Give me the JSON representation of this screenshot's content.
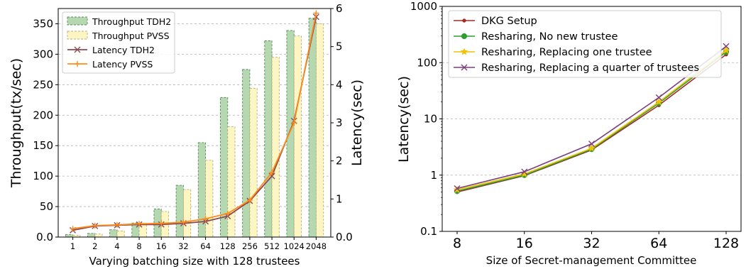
{
  "chart_data": [
    {
      "type": "bar",
      "combo": "bar+line",
      "xlabel": "Varying batching size with 128 trustees",
      "ylabel": "Throughput(tx/sec)",
      "y2label": "Latency(sec)",
      "categories": [
        "1",
        "2",
        "4",
        "8",
        "16",
        "32",
        "64",
        "128",
        "256",
        "512",
        "1024",
        "2048"
      ],
      "ylim": [
        0,
        375
      ],
      "y2lim": [
        0,
        6
      ],
      "yticks": [
        "0.0",
        "50",
        "100",
        "150",
        "200",
        "250",
        "300",
        "350"
      ],
      "y2ticks": [
        "0.0",
        "1",
        "2",
        "3",
        "4",
        "5",
        "6"
      ],
      "grid": true,
      "legend_position": "top-left",
      "series": [
        {
          "name": "Throughput TDH2",
          "kind": "bar",
          "axis": "left",
          "color": "#b5d8b0",
          "edge": "#5c8a5c",
          "values": [
            4,
            6,
            12,
            23,
            46,
            85,
            155,
            229,
            275,
            322,
            339,
            359
          ]
        },
        {
          "name": "Throughput PVSS",
          "kind": "bar",
          "axis": "left",
          "color": "#fdf6c3",
          "edge": "#b5b084",
          "values": [
            3,
            5,
            10,
            20,
            42,
            78,
            126,
            181,
            244,
            295,
            330,
            350
          ]
        },
        {
          "name": "Latency TDH2",
          "kind": "line",
          "axis": "right",
          "marker": "x",
          "color": "#8b4a52",
          "values": [
            0.18,
            0.29,
            0.31,
            0.33,
            0.33,
            0.36,
            0.41,
            0.55,
            0.95,
            1.6,
            3.05,
            5.78
          ]
        },
        {
          "name": "Latency PVSS",
          "kind": "line",
          "axis": "right",
          "marker": "+",
          "color": "#ff8c1a",
          "values": [
            0.22,
            0.3,
            0.32,
            0.35,
            0.36,
            0.39,
            0.48,
            0.62,
            0.97,
            1.7,
            3.0,
            5.88
          ]
        }
      ]
    },
    {
      "type": "line",
      "xlabel": "Size of Secret-management Committee",
      "ylabel": "Latency(sec)",
      "categories": [
        "8",
        "16",
        "32",
        "64",
        "128"
      ],
      "yscale": "log",
      "ylim": [
        0.1,
        1000
      ],
      "yticks": [
        "0.1",
        "1",
        "10",
        "100",
        "1000"
      ],
      "grid": true,
      "legend_position": "top-left",
      "series": [
        {
          "name": "DKG Setup",
          "marker": ".",
          "color": "#a52a2a",
          "values": [
            0.5,
            0.98,
            2.8,
            17.5,
            140
          ]
        },
        {
          "name": "Resharing, No new trustee",
          "marker": "o",
          "color": "#2ca02c",
          "values": [
            0.52,
            1.0,
            2.9,
            19,
            155
          ]
        },
        {
          "name": "Resharing, Replacing one trustee",
          "marker": "*",
          "color": "#f2c100",
          "values": [
            0.55,
            1.05,
            3.0,
            20,
            165
          ]
        },
        {
          "name": "Resharing, Replacing a quarter of trustees",
          "marker": "x",
          "color": "#7b3f7b",
          "values": [
            0.58,
            1.15,
            3.6,
            24,
            195
          ]
        }
      ]
    }
  ]
}
